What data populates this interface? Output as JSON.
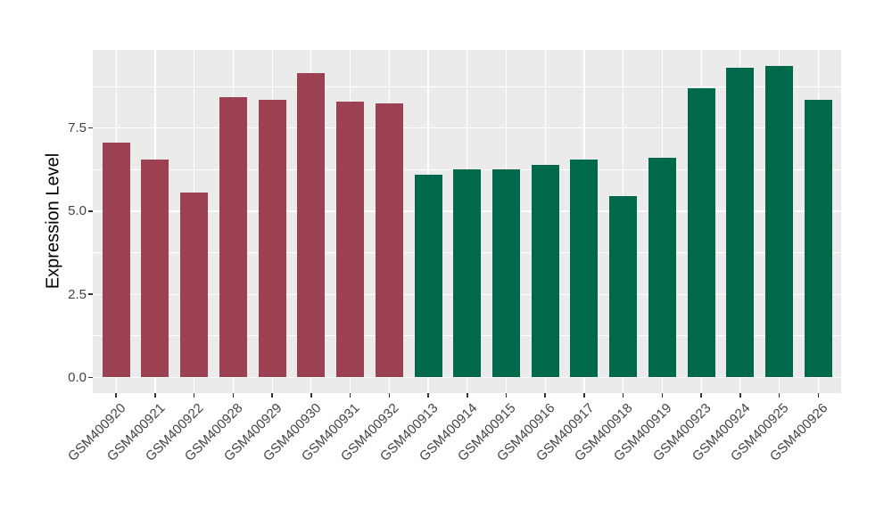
{
  "figure": {
    "background": "#FFFFFF",
    "panel_background": "#EBEBEB",
    "gridline_color": "#FFFFFF",
    "axis_text_color": "#444444",
    "axis_title_color": "#000000",
    "bar_color_red_group": "#9B4152",
    "bar_color_green_group": "#00694B"
  },
  "chart_data": {
    "type": "bar",
    "title": "",
    "xlabel": "",
    "ylabel": "Expression Level",
    "categories": [
      "GSM400920",
      "GSM400921",
      "GSM400922",
      "GSM400928",
      "GSM400929",
      "GSM400930",
      "GSM400931",
      "GSM400932",
      "GSM400913",
      "GSM400914",
      "GSM400915",
      "GSM400916",
      "GSM400917",
      "GSM400918",
      "GSM400919",
      "GSM400923",
      "GSM400924",
      "GSM400925",
      "GSM400926"
    ],
    "values": [
      7.05,
      6.55,
      5.55,
      8.42,
      8.35,
      9.15,
      8.3,
      8.25,
      6.1,
      6.25,
      6.25,
      6.4,
      6.55,
      5.45,
      6.6,
      8.7,
      9.32,
      9.37,
      8.35
    ],
    "colors": [
      "#9B4152",
      "#9B4152",
      "#9B4152",
      "#9B4152",
      "#9B4152",
      "#9B4152",
      "#9B4152",
      "#9B4152",
      "#00694B",
      "#00694B",
      "#00694B",
      "#00694B",
      "#00694B",
      "#00694B",
      "#00694B",
      "#00694B",
      "#00694B",
      "#00694B",
      "#00694B"
    ],
    "yticks": {
      "values": [
        0,
        2.5,
        5,
        7.5
      ],
      "labels": [
        "0.0",
        "2.5",
        "5.0",
        "7.5"
      ]
    },
    "minor_yticks": [
      1.25,
      3.75,
      6.25,
      8.75
    ],
    "ylim": [
      -0.47,
      9.85
    ],
    "grid": true,
    "legend": "none",
    "x_label_rotation_deg": 45,
    "bar_width_fraction": 0.71
  }
}
